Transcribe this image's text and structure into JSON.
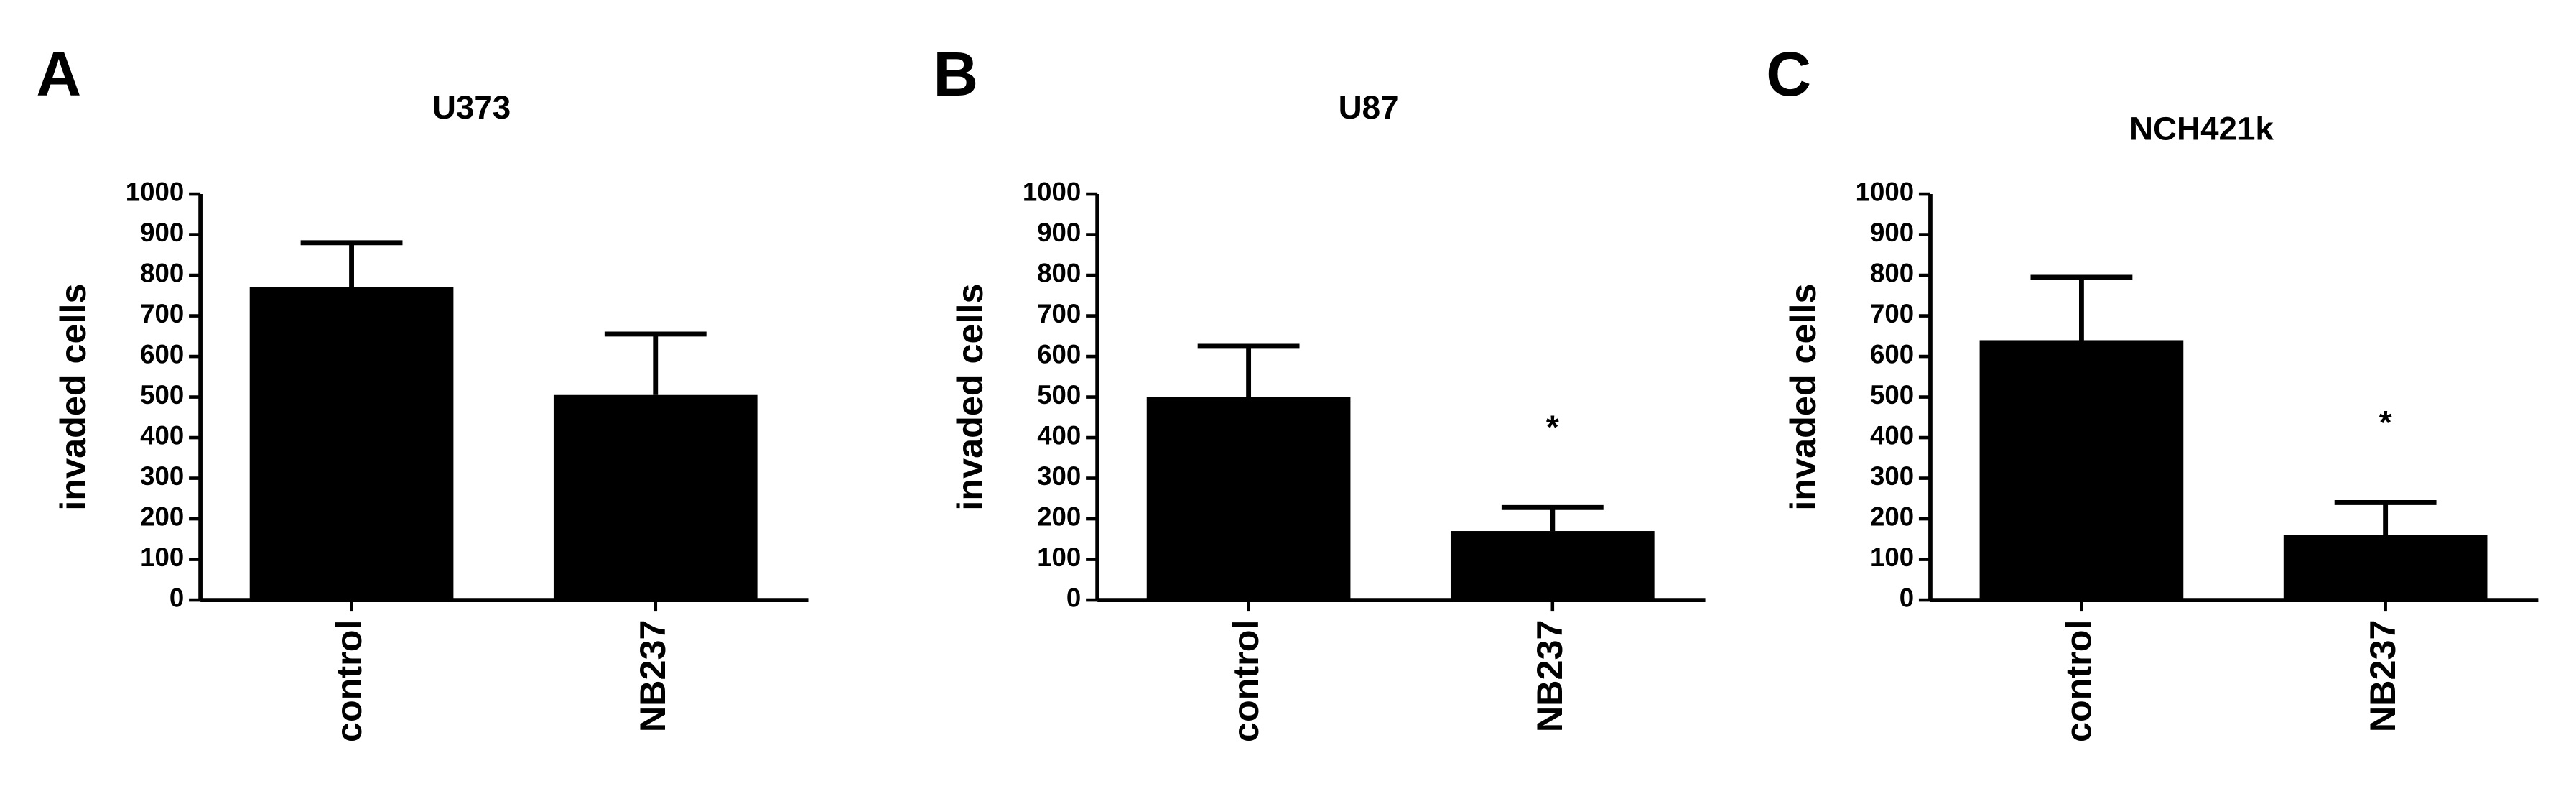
{
  "chart_data": [
    {
      "type": "bar",
      "panel": "A",
      "title": "U373",
      "y_label": "invaded cells",
      "categories": [
        "control",
        "NB237"
      ],
      "values": [
        770,
        505
      ],
      "errors": [
        110,
        150
      ],
      "color": "#000000",
      "ylim": [
        0,
        1000
      ],
      "yticks": [
        0,
        100,
        200,
        300,
        400,
        500,
        600,
        700,
        800,
        900,
        1000
      ],
      "annotations": [
        null,
        null
      ]
    },
    {
      "type": "bar",
      "panel": "B",
      "title": "U87",
      "y_label": "invaded cells",
      "categories": [
        "control",
        "NB237"
      ],
      "values": [
        500,
        170
      ],
      "errors": [
        125,
        58
      ],
      "color": "#000000",
      "ylim": [
        0,
        1000
      ],
      "yticks": [
        0,
        100,
        200,
        300,
        400,
        500,
        600,
        700,
        800,
        900,
        1000
      ],
      "annotations": [
        null,
        "*"
      ]
    },
    {
      "type": "bar",
      "panel": "C",
      "title": "NCH421k",
      "y_label": "invaded cells",
      "categories": [
        "control",
        "NB237"
      ],
      "values": [
        640,
        160
      ],
      "errors": [
        155,
        80
      ],
      "color": "#000000",
      "ylim": [
        0,
        1000
      ],
      "yticks": [
        0,
        100,
        200,
        300,
        400,
        500,
        600,
        700,
        800,
        900,
        1000
      ],
      "annotations": [
        null,
        "*"
      ]
    }
  ]
}
